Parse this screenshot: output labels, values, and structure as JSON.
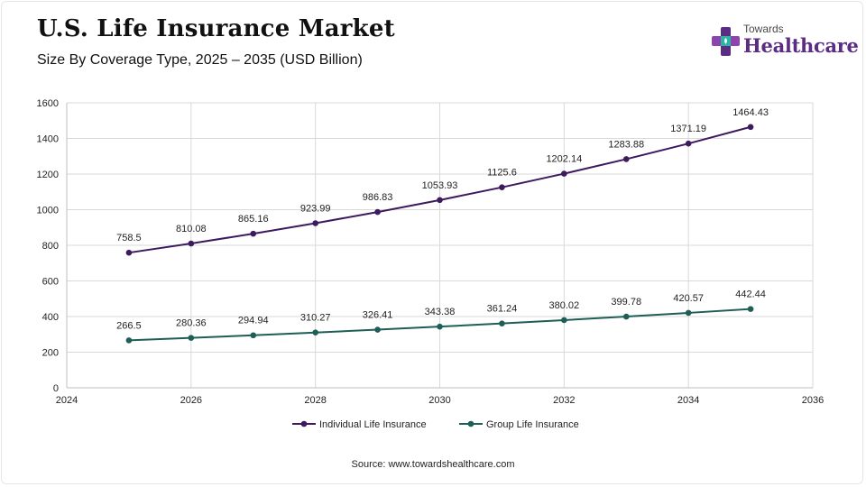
{
  "header": {
    "title": "U.S. Life Insurance Market",
    "subtitle": "Size By Coverage Type, 2025 – 2035 (USD Billion)"
  },
  "logo": {
    "top_text": "Towards",
    "main_text": "Healthcare",
    "icon": "medical-cross-icon",
    "colors": {
      "purple": "#5b2c83",
      "teal": "#2bb5a3",
      "violet": "#8e44ad"
    }
  },
  "source": "Source: www.towardshealthcare.com",
  "chart_data": {
    "type": "line",
    "title": "U.S. Life Insurance Market",
    "subtitle": "Size By Coverage Type, 2025 – 2035 (USD Billion)",
    "x": [
      2025,
      2026,
      2027,
      2028,
      2029,
      2030,
      2031,
      2032,
      2033,
      2034,
      2035
    ],
    "xlim": [
      2024,
      2036
    ],
    "ylim": [
      0,
      1600
    ],
    "xticks": [
      2024,
      2026,
      2028,
      2030,
      2032,
      2034,
      2036
    ],
    "yticks": [
      0,
      200,
      400,
      600,
      800,
      1000,
      1200,
      1400,
      1600
    ],
    "grid": true,
    "legend_position": "bottom",
    "series": [
      {
        "name": "Individual Life Insurance",
        "color": "#3d1a5e",
        "values": [
          758.5,
          810.08,
          865.16,
          923.99,
          986.83,
          1053.93,
          1125.6,
          1202.14,
          1283.88,
          1371.19,
          1464.43
        ],
        "labels": [
          "758.5",
          "810.08",
          "865.16",
          "923.99",
          "986.83",
          "1053.93",
          "1125.6",
          "1202.14",
          "1283.88",
          "1371.19",
          "1464.43"
        ]
      },
      {
        "name": "Group Life Insurance",
        "color": "#1f5e56",
        "values": [
          266.5,
          280.36,
          294.94,
          310.27,
          326.41,
          343.38,
          361.24,
          380.02,
          399.78,
          420.57,
          442.44
        ],
        "labels": [
          "266.5",
          "280.36",
          "294.94",
          "310.27",
          "326.41",
          "343.38",
          "361.24",
          "380.02",
          "399.78",
          "420.57",
          "442.44"
        ]
      }
    ]
  }
}
